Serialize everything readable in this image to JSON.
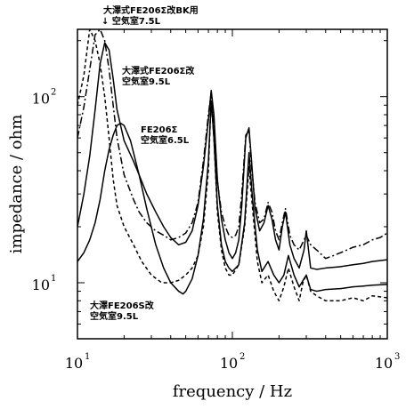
{
  "chart_data": {
    "type": "line",
    "xlabel": "frequency / Hz",
    "ylabel": "impedance / ohm",
    "xscale": "log",
    "yscale": "log",
    "xlim": [
      10,
      1000
    ],
    "ylim": [
      5,
      230
    ],
    "grid": false,
    "legend": "none",
    "x_ticks": [
      {
        "base": "10",
        "exp": "1"
      },
      {
        "base": "10",
        "exp": "2"
      },
      {
        "base": "10",
        "exp": "3"
      }
    ],
    "y_ticks": [
      {
        "base": "10",
        "exp": "1"
      },
      {
        "base": "10",
        "exp": "2"
      }
    ],
    "annotations": [
      {
        "lines": [
          "大澤式FE206Σ改BK用",
          "↓ 空気室7.5L"
        ]
      },
      {
        "lines": [
          "大澤式FE206Σ改",
          "空気室9.5L"
        ]
      },
      {
        "lines": [
          "FE206Σ",
          "空気室6.5L"
        ]
      },
      {
        "lines": [
          "大澤FE206S改",
          "空気室9.5L"
        ]
      }
    ],
    "series": [
      {
        "style": "solid",
        "points": [
          [
            10,
            20
          ],
          [
            11,
            30
          ],
          [
            12,
            48
          ],
          [
            13,
            85
          ],
          [
            14,
            150
          ],
          [
            15,
            195
          ],
          [
            16,
            178
          ],
          [
            17,
            125
          ],
          [
            18,
            85
          ],
          [
            20,
            58
          ],
          [
            23,
            45
          ],
          [
            25,
            38
          ],
          [
            28,
            30
          ],
          [
            32,
            24
          ],
          [
            36,
            20
          ],
          [
            40,
            17.5
          ],
          [
            45,
            16
          ],
          [
            50,
            16.5
          ],
          [
            55,
            19
          ],
          [
            60,
            26
          ],
          [
            65,
            42
          ],
          [
            70,
            75
          ],
          [
            73,
            108
          ],
          [
            76,
            80
          ],
          [
            80,
            36
          ],
          [
            85,
            22
          ],
          [
            90,
            17
          ],
          [
            95,
            14.5
          ],
          [
            100,
            13.5
          ],
          [
            105,
            14.5
          ],
          [
            110,
            17
          ],
          [
            115,
            26
          ],
          [
            122,
            60
          ],
          [
            128,
            68
          ],
          [
            133,
            45
          ],
          [
            140,
            25
          ],
          [
            150,
            19
          ],
          [
            160,
            21
          ],
          [
            170,
            26
          ],
          [
            180,
            22
          ],
          [
            190,
            17
          ],
          [
            200,
            15
          ],
          [
            210,
            20
          ],
          [
            220,
            24
          ],
          [
            235,
            16
          ],
          [
            250,
            13.5
          ],
          [
            270,
            12
          ],
          [
            290,
            15
          ],
          [
            300,
            19
          ],
          [
            320,
            12
          ],
          [
            350,
            11.8
          ],
          [
            400,
            12
          ],
          [
            500,
            12.2
          ],
          [
            600,
            12.5
          ],
          [
            700,
            12.7
          ],
          [
            800,
            13
          ],
          [
            1000,
            13.3
          ]
        ]
      },
      {
        "style": "dashed",
        "points": [
          [
            10,
            90
          ],
          [
            11,
            130
          ],
          [
            12,
            230
          ],
          [
            13,
            200
          ],
          [
            14,
            150
          ],
          [
            15,
            100
          ],
          [
            16,
            60
          ],
          [
            17,
            36
          ],
          [
            18,
            26
          ],
          [
            20,
            20
          ],
          [
            23,
            16
          ],
          [
            26,
            13
          ],
          [
            30,
            11
          ],
          [
            35,
            10
          ],
          [
            40,
            10
          ],
          [
            45,
            10.3
          ],
          [
            50,
            11
          ],
          [
            55,
            12
          ],
          [
            60,
            14
          ],
          [
            65,
            20
          ],
          [
            70,
            40
          ],
          [
            73,
            100
          ],
          [
            76,
            60
          ],
          [
            80,
            24
          ],
          [
            85,
            15
          ],
          [
            90,
            12
          ],
          [
            95,
            11
          ],
          [
            100,
            11
          ],
          [
            110,
            12.5
          ],
          [
            120,
            20
          ],
          [
            128,
            42
          ],
          [
            135,
            25
          ],
          [
            145,
            13
          ],
          [
            155,
            10
          ],
          [
            170,
            11
          ],
          [
            185,
            9
          ],
          [
            200,
            8
          ],
          [
            215,
            9.5
          ],
          [
            230,
            12
          ],
          [
            250,
            9.5
          ],
          [
            270,
            8
          ],
          [
            285,
            10
          ],
          [
            300,
            11
          ],
          [
            320,
            9
          ],
          [
            350,
            8.5
          ],
          [
            400,
            8
          ],
          [
            500,
            8
          ],
          [
            600,
            8.3
          ],
          [
            700,
            8
          ],
          [
            800,
            8.5
          ],
          [
            1000,
            8.3
          ]
        ]
      },
      {
        "style": "dashdot",
        "points": [
          [
            10,
            60
          ],
          [
            11,
            88
          ],
          [
            12,
            140
          ],
          [
            13,
            215
          ],
          [
            14,
            230
          ],
          [
            15,
            200
          ],
          [
            16,
            140
          ],
          [
            17,
            90
          ],
          [
            18,
            60
          ],
          [
            20,
            38
          ],
          [
            23,
            28
          ],
          [
            25,
            24
          ],
          [
            28,
            21
          ],
          [
            32,
            19
          ],
          [
            36,
            18
          ],
          [
            40,
            17
          ],
          [
            45,
            17.5
          ],
          [
            50,
            18.5
          ],
          [
            55,
            21
          ],
          [
            60,
            27
          ],
          [
            65,
            45
          ],
          [
            70,
            80
          ],
          [
            73,
            105
          ],
          [
            76,
            75
          ],
          [
            80,
            35
          ],
          [
            85,
            24
          ],
          [
            90,
            20
          ],
          [
            95,
            18
          ],
          [
            100,
            17.5
          ],
          [
            105,
            18
          ],
          [
            110,
            20
          ],
          [
            115,
            30
          ],
          [
            122,
            62
          ],
          [
            128,
            66
          ],
          [
            133,
            42
          ],
          [
            140,
            27
          ],
          [
            150,
            21
          ],
          [
            160,
            22
          ],
          [
            170,
            27
          ],
          [
            180,
            24
          ],
          [
            190,
            19
          ],
          [
            200,
            17
          ],
          [
            210,
            21
          ],
          [
            220,
            25
          ],
          [
            235,
            18
          ],
          [
            250,
            16
          ],
          [
            270,
            15
          ],
          [
            290,
            17
          ],
          [
            300,
            18
          ],
          [
            320,
            16
          ],
          [
            350,
            15
          ],
          [
            400,
            13.5
          ],
          [
            450,
            14
          ],
          [
            500,
            14.5
          ],
          [
            600,
            15.5
          ],
          [
            700,
            16
          ],
          [
            800,
            17
          ],
          [
            900,
            17.5
          ],
          [
            1000,
            18.5
          ]
        ]
      },
      {
        "style": "solid",
        "points": [
          [
            10,
            13
          ],
          [
            11,
            14.5
          ],
          [
            12,
            17
          ],
          [
            13,
            21
          ],
          [
            14,
            28
          ],
          [
            15,
            40
          ],
          [
            16,
            52
          ],
          [
            17,
            62
          ],
          [
            18,
            70
          ],
          [
            19,
            72
          ],
          [
            20,
            70
          ],
          [
            22,
            58
          ],
          [
            25,
            38
          ],
          [
            28,
            25
          ],
          [
            32,
            16
          ],
          [
            36,
            12
          ],
          [
            40,
            10
          ],
          [
            45,
            9
          ],
          [
            48,
            8.7
          ],
          [
            50,
            9
          ],
          [
            55,
            10.5
          ],
          [
            60,
            14
          ],
          [
            65,
            22
          ],
          [
            70,
            45
          ],
          [
            73,
            95
          ],
          [
            76,
            60
          ],
          [
            80,
            26
          ],
          [
            85,
            16
          ],
          [
            90,
            13
          ],
          [
            95,
            12
          ],
          [
            100,
            11.5
          ],
          [
            110,
            12.5
          ],
          [
            120,
            21
          ],
          [
            128,
            50
          ],
          [
            135,
            28
          ],
          [
            145,
            15
          ],
          [
            155,
            11.5
          ],
          [
            170,
            13
          ],
          [
            185,
            11
          ],
          [
            200,
            10
          ],
          [
            215,
            11
          ],
          [
            230,
            14
          ],
          [
            250,
            11
          ],
          [
            270,
            9.5
          ],
          [
            290,
            10.5
          ],
          [
            300,
            11
          ],
          [
            320,
            9.2
          ],
          [
            350,
            9
          ],
          [
            400,
            9.2
          ],
          [
            500,
            9.3
          ],
          [
            600,
            9.5
          ],
          [
            700,
            9.6
          ],
          [
            800,
            9.7
          ],
          [
            1000,
            9.8
          ]
        ]
      }
    ]
  }
}
